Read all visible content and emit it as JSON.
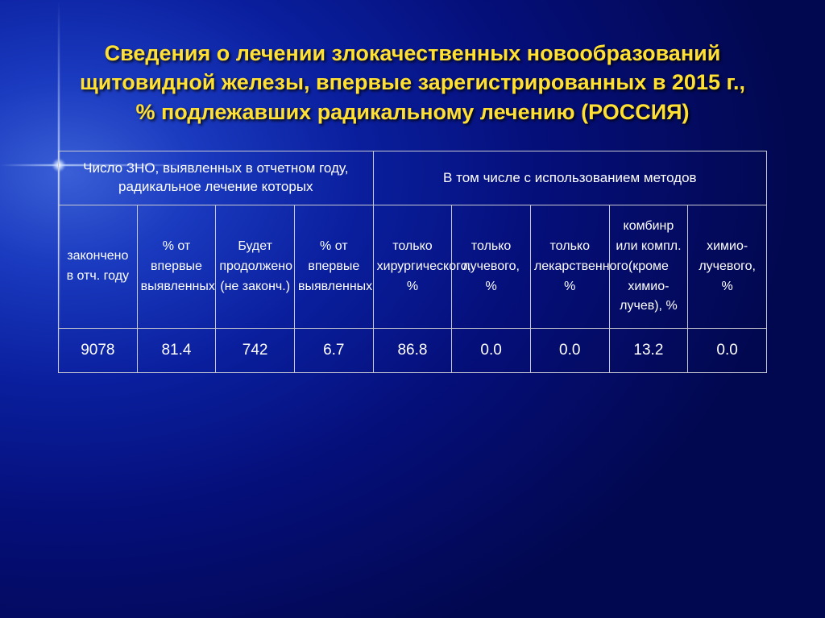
{
  "title": "Сведения о лечении злокачественных новообразований щитовидной железы, впервые зарегистрированных в 2015 г., % подлежавших радикальному лечению (РОССИЯ)",
  "table": {
    "group_headers": [
      "Число ЗНО, выявленных в отчетном году, радикальное лечение которых",
      "В том числе с использованием методов"
    ],
    "sub_headers": [
      "закончено в отч. году",
      "% от впервые выявленных",
      "Будет продолжено (не законч.)",
      "% от впервые выявленных",
      "только хирургического, %",
      "только лучевого, %",
      "только лекарственного, %",
      "комбинр или компл. (кроме химио-лучев), %",
      "химио-лучевого, %"
    ],
    "row": [
      "9078",
      "81.4",
      "742",
      "6.7",
      "86.8",
      "0.0",
      "0.0",
      "13.2",
      "0.0"
    ]
  },
  "colors": {
    "title": "#ffe033",
    "text": "#ffffff",
    "border": "#c9c9d2",
    "bg_inner": "#1a3abf",
    "bg_outer": "#020850"
  },
  "fonts": {
    "title_pt": 27,
    "header_pt": 17,
    "subheader_pt": 16,
    "cell_pt": 19
  }
}
